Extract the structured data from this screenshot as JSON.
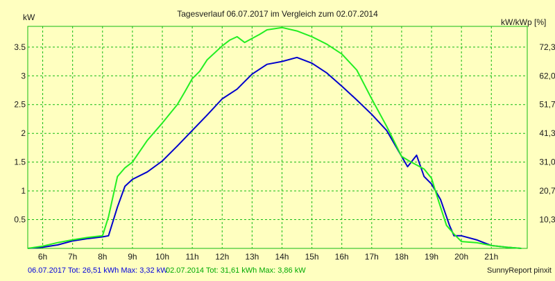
{
  "colors": {
    "background": "#ffffc0",
    "grid": "#11bb11",
    "series_2017": "#0000cc",
    "series_2014": "#22ee22",
    "footer_2017": "#0000dd",
    "footer_2014": "#00aa00"
  },
  "chart_data": {
    "type": "line",
    "title": "Tagesverlauf 06.07.2017 im Vergleich zum 02.07.2014",
    "ylabel_left": "kW",
    "ylabel_right": "kW/kWp [%]",
    "xlim": [
      5.5,
      22.2
    ],
    "ylim": [
      0,
      3.86
    ],
    "grid": true,
    "x_ticks": [
      6,
      7,
      8,
      9,
      10,
      11,
      12,
      13,
      14,
      15,
      16,
      17,
      18,
      19,
      20,
      21
    ],
    "x_tick_labels": [
      "6h",
      "7h",
      "8h",
      "9h",
      "10h",
      "11h",
      "12h",
      "13h",
      "14h",
      "15h",
      "16h",
      "17h",
      "18h",
      "19h",
      "20h",
      "21h"
    ],
    "y_ticks": [
      0.5,
      1,
      1.5,
      2,
      2.5,
      3,
      3.5
    ],
    "y_tick_labels": [
      "0.5",
      "1",
      "1.5",
      "2",
      "2.5",
      "3",
      "3.5"
    ],
    "y_right_tick_labels": [
      "10,3",
      "20,7",
      "31,0",
      "41,3",
      "51,7",
      "62,0",
      "72,3"
    ],
    "series": [
      {
        "name": "06.07.2017",
        "x": [
          5.5,
          6,
          6.5,
          7,
          7.5,
          8,
          8.2,
          8.5,
          8.75,
          9,
          9.5,
          10,
          10.5,
          11,
          11.5,
          12,
          12.5,
          12.75,
          13,
          13.5,
          14,
          14.5,
          15,
          15.5,
          16,
          16.5,
          17,
          17.5,
          18,
          18.2,
          18.5,
          18.75,
          19,
          19.3,
          19.6,
          19.75,
          20,
          20.5,
          21,
          21.5,
          22
        ],
        "y": [
          0,
          0.02,
          0.06,
          0.13,
          0.17,
          0.2,
          0.22,
          0.72,
          1.08,
          1.2,
          1.33,
          1.52,
          1.78,
          2.05,
          2.32,
          2.6,
          2.77,
          2.9,
          3.03,
          3.2,
          3.25,
          3.32,
          3.22,
          3.05,
          2.82,
          2.58,
          2.33,
          2.05,
          1.6,
          1.42,
          1.62,
          1.25,
          1.12,
          0.85,
          0.4,
          0.22,
          0.22,
          0.15,
          0.05,
          0.02,
          0
        ]
      },
      {
        "name": "02.07.2014",
        "x": [
          5.5,
          6,
          6.5,
          7,
          7.5,
          8,
          8.2,
          8.5,
          8.75,
          9,
          9.5,
          10,
          10.5,
          10.75,
          11,
          11.25,
          11.5,
          11.75,
          12,
          12.25,
          12.5,
          12.75,
          13,
          13.25,
          13.5,
          14,
          14.5,
          15,
          15.5,
          16,
          16.5,
          17,
          17.5,
          18,
          18.25,
          18.5,
          18.75,
          19,
          19.25,
          19.5,
          19.75,
          20,
          20.5,
          21,
          21.5,
          22
        ],
        "y": [
          0,
          0.04,
          0.1,
          0.15,
          0.19,
          0.22,
          0.55,
          1.25,
          1.4,
          1.5,
          1.88,
          2.18,
          2.5,
          2.72,
          2.95,
          3.08,
          3.28,
          3.4,
          3.52,
          3.62,
          3.68,
          3.58,
          3.65,
          3.72,
          3.8,
          3.84,
          3.78,
          3.68,
          3.55,
          3.38,
          3.1,
          2.6,
          2.12,
          1.6,
          1.52,
          1.45,
          1.38,
          1.22,
          0.8,
          0.4,
          0.25,
          0.12,
          0.1,
          0.05,
          0.02,
          0
        ]
      }
    ]
  },
  "footer": {
    "left_2017": "06.07.2017 Tot: 26,51 kWh Max: 3,32 kW",
    "left_2014": "02.07.2014 Tot: 31,61 kWh Max: 3,86 kW",
    "credit": "SunnyReport pinxit"
  }
}
